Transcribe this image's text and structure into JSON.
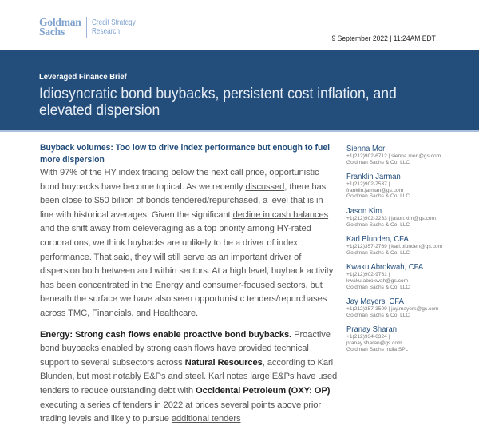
{
  "header": {
    "logo_line1": "Goldman",
    "logo_line2": "Sachs",
    "unit_line1": "Credit Strategy",
    "unit_line2": "Research",
    "date": "9 September 2022 | 11:24AM EDT"
  },
  "banner": {
    "series": "Leveraged Finance Brief",
    "title": "Idiosyncratic bond buybacks, persistent cost inflation, and elevated dispersion"
  },
  "body": {
    "heading": "Buyback volumes: Too low to drive index performance but enough to fuel more dispersion",
    "p1": {
      "t1": "With 97% of the HY index trading below the next call price, opportunistic bond buybacks have become topical. As we recently ",
      "link1": "discussed",
      "t2": ", there has been close to $50 billion of bonds tendered/repurchased, a level that is in line with historical averages. Given the significant ",
      "link2": "decline in cash balances",
      "t3": " and the shift away from deleveraging as a top priority among HY-rated corporations, we think buybacks are unlikely to be a driver of index performance. That said, they will still serve as an important driver of dispersion both between and within sectors. At a high level, buyback activity has been concentrated in the Energy and consumer-focused sectors, but beneath the surface we have also seen opportunistic tenders/repurchases across TMC, Financials, and Healthcare."
    },
    "p2": {
      "b1": "Energy: Strong cash flows enable proactive bond buybacks.",
      "t1": " Proactive bond buybacks enabled by strong cash flows have provided technical support to several subsectors across ",
      "b2": "Natural Resources",
      "t2": ", according to Karl Blunden, but most notably E&Ps and steel. Karl notes large E&Ps have used tenders to reduce outstanding debt with ",
      "b3": "Occidental Petroleum (OXY: OP)",
      "t3": " executing a series of tenders in 2022 at prices several points above prior trading levels and likely to pursue ",
      "link1": "additional tenders"
    }
  },
  "authors": [
    {
      "name": "Sienna Mori",
      "contact": "+1(212)902-6712 | sienna.mori@gs.com",
      "firm": "Goldman Sachs & Co. LLC"
    },
    {
      "name": "Franklin Jarman",
      "contact": "+1(212)902-7537 | franklin.jarman@gs.com",
      "firm": "Goldman Sachs & Co. LLC"
    },
    {
      "name": "Jason Kim",
      "contact": "+1(212)902-2233 | jason.kim@gs.com",
      "firm": "Goldman Sachs & Co. LLC"
    },
    {
      "name": "Karl Blunden, CFA",
      "contact": "+1(212)357-2769 | karl.blunden@gs.com",
      "firm": "Goldman Sachs & Co. LLC"
    },
    {
      "name": "Kwaku Abrokwah, CFA",
      "contact": "+1(212)902-9761 | kwaku.abrokwah@gs.com",
      "firm": "Goldman Sachs & Co. LLC"
    },
    {
      "name": "Jay Mayers, CFA",
      "contact": "+1(212)357-3509 | jay.mayers@gs.com",
      "firm": "Goldman Sachs & Co. LLC"
    },
    {
      "name": "Pranay Sharan",
      "contact": "+1(212)934-6324 | pranay.sharan@gs.com",
      "firm": "Goldman Sachs India SPL"
    }
  ],
  "colors": {
    "brand_navy": "#234d7b",
    "logo_blue": "#7fa2cf"
  }
}
